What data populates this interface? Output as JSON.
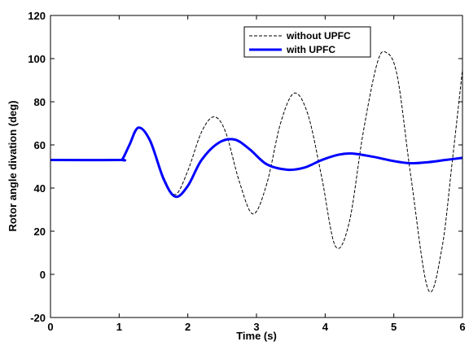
{
  "chart_data": {
    "type": "line",
    "title": "",
    "xlabel": "Time (s)",
    "ylabel": "Rotor angle divation (deg)",
    "xlim": [
      0,
      6
    ],
    "ylim": [
      -20,
      120
    ],
    "xticks": [
      0,
      1,
      2,
      3,
      4,
      5,
      6
    ],
    "yticks": [
      -20,
      0,
      20,
      40,
      60,
      80,
      100,
      120
    ],
    "grid": false,
    "legend": {
      "position": "top-right"
    },
    "series": [
      {
        "name": "without UPFC",
        "color": "#000000",
        "style": "dashed",
        "x": [
          0,
          1.0,
          1.05,
          1.15,
          1.28,
          1.45,
          1.65,
          1.82,
          2.0,
          2.2,
          2.38,
          2.55,
          2.75,
          2.95,
          3.15,
          3.35,
          3.55,
          3.75,
          3.95,
          4.15,
          4.35,
          4.55,
          4.75,
          4.88,
          5.05,
          5.25,
          5.5,
          5.7,
          5.85,
          6.0
        ],
        "y": [
          53,
          53,
          53.5,
          60,
          68,
          62,
          45,
          37,
          48,
          66,
          73,
          66,
          43,
          28,
          42,
          70,
          84,
          74,
          45,
          13,
          24,
          65,
          97,
          103,
          92,
          45,
          -7,
          12,
          52,
          95
        ]
      },
      {
        "name": "with UPFC",
        "color": "#0000ff",
        "style": "solid",
        "x": [
          0,
          1.0,
          1.05,
          1.15,
          1.28,
          1.45,
          1.65,
          1.82,
          2.0,
          2.2,
          2.45,
          2.68,
          2.9,
          3.15,
          3.45,
          3.7,
          3.95,
          4.2,
          4.4,
          4.7,
          5.0,
          5.25,
          5.5,
          5.75,
          6.0
        ],
        "y": [
          53,
          53,
          53.5,
          60,
          68,
          62,
          44,
          36,
          41,
          53,
          61,
          62.5,
          58,
          51,
          48.5,
          49.5,
          53,
          55.5,
          56,
          54.5,
          52.5,
          51.5,
          52,
          53,
          54
        ]
      }
    ]
  }
}
